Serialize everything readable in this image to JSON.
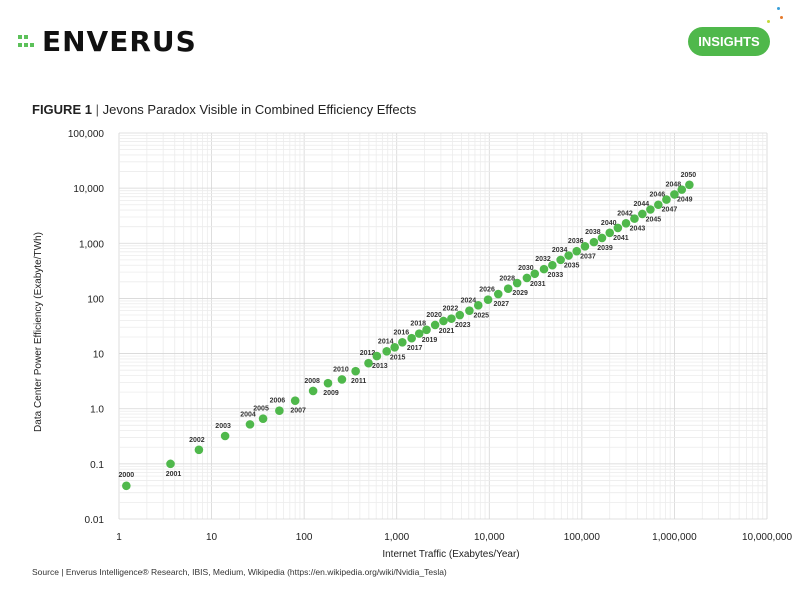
{
  "header": {
    "logo_text": "ENVERUS",
    "insights_label": "INSIGHTS",
    "brand_color": "#4fb84b"
  },
  "figure": {
    "label": "FIGURE 1",
    "separator": "|",
    "title": "Jevons Paradox Visible in Combined Efficiency Effects"
  },
  "source": "Source | Enverus Intelligence® Research, IBIS, Medium, Wikipedia (https://en.wikipedia.org/wiki/Nvidia_Tesla)",
  "chart_data": {
    "type": "scatter",
    "xlabel": "Internet Traffic (Exabytes/Year)",
    "ylabel": "Data Center Power Efficiency (Exabyte/TWh)",
    "x_scale": "log",
    "y_scale": "log",
    "xlim": [
      1,
      10000000
    ],
    "ylim": [
      0.01,
      100000
    ],
    "x_ticks": [
      1,
      10,
      100,
      1000,
      10000,
      100000,
      1000000,
      10000000
    ],
    "x_tick_labels": [
      "1",
      "10",
      "100",
      "1,000",
      "10,000",
      "100,000",
      "1,000,000",
      "10,000,000"
    ],
    "y_ticks": [
      0.01,
      0.1,
      1,
      10,
      100,
      1000,
      10000,
      100000
    ],
    "y_tick_labels": [
      "0.01",
      "0.1",
      "1.0",
      "10",
      "100",
      "1,000",
      "10,000",
      "100,000"
    ],
    "grid": true,
    "marker_color": "#4fb84b",
    "points": [
      {
        "label": "2000",
        "x": 1.2,
        "y": 0.04
      },
      {
        "label": "2001",
        "x": 3.6,
        "y": 0.1
      },
      {
        "label": "2002",
        "x": 7.3,
        "y": 0.18
      },
      {
        "label": "2003",
        "x": 14,
        "y": 0.32
      },
      {
        "label": "2004",
        "x": 26,
        "y": 0.52
      },
      {
        "label": "2005",
        "x": 36,
        "y": 0.66
      },
      {
        "label": "2006",
        "x": 54,
        "y": 0.92
      },
      {
        "label": "2007",
        "x": 80,
        "y": 1.4
      },
      {
        "label": "2008",
        "x": 125,
        "y": 2.1
      },
      {
        "label": "2009",
        "x": 181,
        "y": 2.9
      },
      {
        "label": "2010",
        "x": 256,
        "y": 3.4
      },
      {
        "label": "2011",
        "x": 360,
        "y": 4.8
      },
      {
        "label": "2012",
        "x": 496,
        "y": 6.7
      },
      {
        "label": "2013",
        "x": 610,
        "y": 9
      },
      {
        "label": "2014",
        "x": 780,
        "y": 11
      },
      {
        "label": "2015",
        "x": 950,
        "y": 13
      },
      {
        "label": "2016",
        "x": 1150,
        "y": 16
      },
      {
        "label": "2017",
        "x": 1450,
        "y": 19
      },
      {
        "label": "2018",
        "x": 1750,
        "y": 23
      },
      {
        "label": "2019",
        "x": 2100,
        "y": 27
      },
      {
        "label": "2020",
        "x": 2600,
        "y": 33
      },
      {
        "label": "2021",
        "x": 3200,
        "y": 39
      },
      {
        "label": "2022",
        "x": 3900,
        "y": 43
      },
      {
        "label": "2023",
        "x": 4800,
        "y": 50
      },
      {
        "label": "2024",
        "x": 6100,
        "y": 60
      },
      {
        "label": "2025",
        "x": 7600,
        "y": 75
      },
      {
        "label": "2026",
        "x": 9700,
        "y": 95
      },
      {
        "label": "2027",
        "x": 12500,
        "y": 120
      },
      {
        "label": "2028",
        "x": 16000,
        "y": 150
      },
      {
        "label": "2029",
        "x": 20000,
        "y": 190
      },
      {
        "label": "2030",
        "x": 25500,
        "y": 235
      },
      {
        "label": "2031",
        "x": 31000,
        "y": 280
      },
      {
        "label": "2032",
        "x": 39000,
        "y": 340
      },
      {
        "label": "2033",
        "x": 48000,
        "y": 400
      },
      {
        "label": "2034",
        "x": 59000,
        "y": 500
      },
      {
        "label": "2035",
        "x": 72000,
        "y": 600
      },
      {
        "label": "2036",
        "x": 88000,
        "y": 720
      },
      {
        "label": "2037",
        "x": 108000,
        "y": 880
      },
      {
        "label": "2038",
        "x": 135000,
        "y": 1050
      },
      {
        "label": "2039",
        "x": 165000,
        "y": 1250
      },
      {
        "label": "2040",
        "x": 200000,
        "y": 1550
      },
      {
        "label": "2041",
        "x": 245000,
        "y": 1900
      },
      {
        "label": "2042",
        "x": 300000,
        "y": 2300
      },
      {
        "label": "2043",
        "x": 370000,
        "y": 2800
      },
      {
        "label": "2044",
        "x": 450000,
        "y": 3400
      },
      {
        "label": "2045",
        "x": 550000,
        "y": 4100
      },
      {
        "label": "2046",
        "x": 670000,
        "y": 5000
      },
      {
        "label": "2047",
        "x": 820000,
        "y": 6200
      },
      {
        "label": "2048",
        "x": 1000000,
        "y": 7700
      },
      {
        "label": "2049",
        "x": 1200000,
        "y": 9400
      },
      {
        "label": "2050",
        "x": 1450000,
        "y": 11500
      }
    ]
  }
}
